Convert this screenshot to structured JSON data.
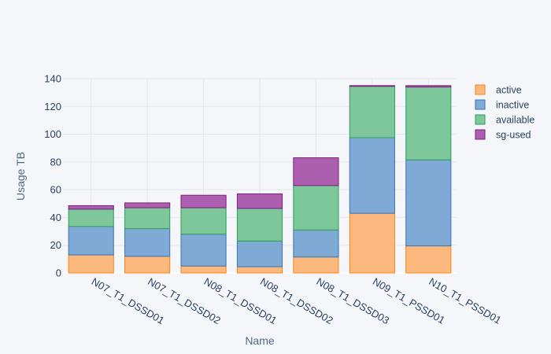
{
  "chart_data": {
    "type": "bar",
    "stacked": true,
    "categories": [
      "N07_T1_DSSD01",
      "N07_T1_DSSD02",
      "N08_T1_DSSD01",
      "N08_T1_DSSD02",
      "N08_T1_DSSD03",
      "N09_T1_PSSD01",
      "N10_T1_PSSD01"
    ],
    "series": [
      {
        "name": "active",
        "color": "#fdb87d",
        "stroke": "#f58518",
        "values": [
          13,
          12,
          5,
          4.5,
          11.5,
          43,
          19.5
        ]
      },
      {
        "name": "inactive",
        "color": "#7faad6",
        "stroke": "#3a74b5",
        "values": [
          20.5,
          20,
          23,
          18.5,
          19.5,
          54.5,
          62
        ]
      },
      {
        "name": "available",
        "color": "#7dc79a",
        "stroke": "#2e9e5b",
        "values": [
          12.5,
          15,
          19,
          23.5,
          32,
          37,
          52.5
        ]
      },
      {
        "name": "sg-used",
        "color": "#ac5fae",
        "stroke": "#7a1f7e",
        "values": [
          2.5,
          3.5,
          9,
          10.5,
          20,
          0.5,
          1
        ]
      }
    ],
    "xlabel": "Name",
    "ylabel": "Usage TB",
    "ylim": [
      0,
      140
    ],
    "yticks": [
      0,
      20,
      40,
      60,
      80,
      100,
      120,
      140
    ],
    "grid": true,
    "legend_position": "right"
  }
}
